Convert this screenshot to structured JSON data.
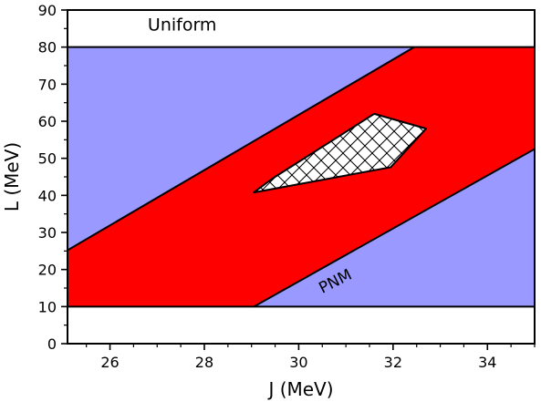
{
  "chart_data": {
    "type": "area",
    "xlabel": "J (MeV)",
    "ylabel": "L (MeV)",
    "xlim": [
      25.1,
      35.0
    ],
    "ylim": [
      0,
      90
    ],
    "x_ticks": [
      26,
      28,
      30,
      32,
      34
    ],
    "y_ticks": [
      0,
      10,
      20,
      30,
      40,
      50,
      60,
      70,
      80,
      90
    ],
    "x_minor_step": 0.5,
    "y_minor_step": 5,
    "grid": false,
    "colors": {
      "allowed_region": "#9999ff",
      "band": "#ff0000",
      "hatched_region_fill": "#ffffff",
      "outline": "#000000"
    },
    "regions": [
      {
        "role": "allowed_region",
        "points": [
          [
            25.1,
            10
          ],
          [
            35.0,
            10
          ],
          [
            35.0,
            80
          ],
          [
            25.1,
            80
          ]
        ]
      },
      {
        "role": "band",
        "points": [
          [
            25.1,
            10
          ],
          [
            29.05,
            10
          ],
          [
            35.0,
            52.5
          ],
          [
            35.0,
            80
          ],
          [
            32.45,
            80
          ],
          [
            25.1,
            25.2
          ]
        ]
      },
      {
        "role": "hatched_region",
        "points": [
          [
            29.05,
            40.8
          ],
          [
            29.45,
            44.6
          ],
          [
            31.6,
            62.0
          ],
          [
            32.7,
            58.0
          ],
          [
            31.95,
            47.6
          ]
        ]
      }
    ],
    "boundary_lines": [
      {
        "points": [
          [
            25.1,
            25.2
          ],
          [
            32.45,
            80
          ]
        ]
      },
      {
        "points": [
          [
            29.05,
            10
          ],
          [
            35.0,
            52.5
          ]
        ]
      }
    ],
    "horizontal_lines": [
      10,
      80
    ],
    "annotations": [
      {
        "text": "Uniform",
        "x": 26.8,
        "y": 84.5,
        "rotation": 0
      },
      {
        "text": "PNM",
        "x": 30.5,
        "y": 13.5,
        "rotation": -27
      }
    ]
  }
}
